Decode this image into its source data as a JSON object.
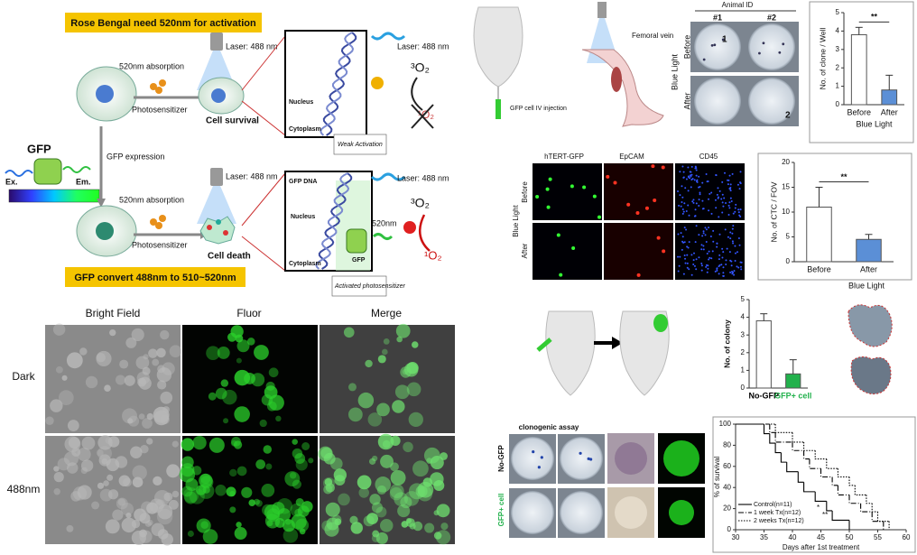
{
  "schematic": {
    "banner_top": "Rose Bengal need 520nm for activation",
    "banner_bottom": "GFP convert 488nm to 510~520nm",
    "gfp": "GFP",
    "ex": "Ex.",
    "em": "Em.",
    "gfp_expression": "GFP expression",
    "top": {
      "absorption": "520nm absorption",
      "photosensitizer": "Photosensitizer",
      "laser": "Laser: 488 nm",
      "result": "Cell survival",
      "nucleus": "Nucleus",
      "cytoplasm": "Cytoplasm",
      "inset_laser": "Laser: 488 nm",
      "triplet": "³O₂",
      "singlet": "¹O₂",
      "note": "Weak Activation"
    },
    "bottom": {
      "absorption": "520nm absorption",
      "photosensitizer": "Photosensitizer",
      "laser": "Laser: 488 nm",
      "result": "Cell death",
      "gfp_dna": "GFP DNA",
      "nucleus": "Nucleus",
      "cytoplasm": "Cytoplasm",
      "gfp": "GFP",
      "emission": "520nm",
      "inset_laser": "Laser: 488 nm",
      "triplet": "³O₂",
      "singlet": "¹O₂",
      "note": "Activated photosensitizer"
    }
  },
  "microscopy": {
    "columns": [
      "Bright Field",
      "Fluor",
      "Merge"
    ],
    "rows": [
      "Dark",
      "488nm"
    ]
  },
  "in_vivo": {
    "injection": "GFP cell IV injection",
    "vein": "Femoral vein",
    "animal_id": "Animal ID",
    "ids": [
      "#1",
      "#2"
    ],
    "rows": [
      "Before",
      "After"
    ],
    "group": "Blue Light",
    "colony_marks": [
      "1",
      "2"
    ]
  },
  "ctc": {
    "markers": [
      "hTERT-GFP",
      "EpCAM",
      "CD45"
    ],
    "rows": [
      "Before",
      "After"
    ],
    "group": "Blue Light"
  },
  "clonogenic": {
    "title": "clonogenic assay",
    "rows": [
      "No-GFP",
      "GFP+ cell"
    ]
  },
  "chart_data": [
    {
      "type": "bar",
      "ylabel": "No. of clone / Well",
      "xlabel": "Blue Light",
      "categories": [
        "Before",
        "After"
      ],
      "values": [
        3.8,
        0.8
      ],
      "errors": [
        0.4,
        0.8
      ],
      "colors": [
        "#ffffff",
        "#5b8fd6"
      ],
      "ylim": [
        0,
        5
      ],
      "yticks": [
        0,
        1,
        2,
        3,
        4,
        5
      ],
      "annotation": "**"
    },
    {
      "type": "bar",
      "ylabel": "No. of CTC / FOV",
      "xlabel": "Blue Light",
      "categories": [
        "Before",
        "After"
      ],
      "values": [
        11,
        4.5
      ],
      "errors": [
        4,
        1
      ],
      "colors": [
        "#ffffff",
        "#5b8fd6"
      ],
      "ylim": [
        0,
        20
      ],
      "yticks": [
        0,
        5,
        10,
        15,
        20
      ],
      "annotation": "**"
    },
    {
      "type": "bar",
      "ylabel": "No. of colony",
      "categories": [
        "No-GFP",
        "GFP+ cell"
      ],
      "category_colors": [
        "#000000",
        "#22b14c"
      ],
      "values": [
        3.8,
        0.8
      ],
      "errors": [
        0.4,
        0.8
      ],
      "colors": [
        "#ffffff",
        "#22b14c"
      ],
      "ylim": [
        0,
        5
      ],
      "yticks": [
        0,
        1,
        2,
        3,
        4,
        5
      ]
    },
    {
      "type": "line",
      "step": true,
      "ylabel": "% of survival",
      "xlabel": "Days after 1st treatment",
      "xlim": [
        30,
        60
      ],
      "xticks": [
        30,
        35,
        40,
        45,
        50,
        55,
        60
      ],
      "ylim": [
        0,
        100
      ],
      "yticks": [
        0,
        20,
        40,
        60,
        80,
        100
      ],
      "series": [
        {
          "name": "Control(n=11)",
          "color": "#000000",
          "dash": "solid",
          "x": [
            30,
            35,
            36,
            37,
            38,
            39,
            41,
            42,
            44,
            46,
            47,
            50
          ],
          "values": [
            100,
            91,
            82,
            73,
            64,
            55,
            45,
            36,
            27,
            18,
            9,
            0
          ]
        },
        {
          "name": "1 week Tx(n=12)",
          "color": "#000000",
          "dash": "dashdot",
          "x": [
            30,
            36,
            37,
            40,
            42,
            43,
            45,
            47,
            48,
            50,
            52,
            54,
            56
          ],
          "values": [
            100,
            92,
            83,
            75,
            67,
            58,
            50,
            42,
            33,
            25,
            17,
            8,
            0
          ]
        },
        {
          "name": "2 weeks Tx(n=12)",
          "color": "#000000",
          "dash": "dotted",
          "x": [
            30,
            37,
            40,
            42,
            44,
            46,
            48,
            50,
            51,
            53,
            54,
            55,
            57
          ],
          "values": [
            100,
            92,
            83,
            75,
            67,
            58,
            50,
            42,
            33,
            25,
            17,
            8,
            0
          ]
        }
      ],
      "annotations": [
        "*",
        "**"
      ]
    }
  ]
}
